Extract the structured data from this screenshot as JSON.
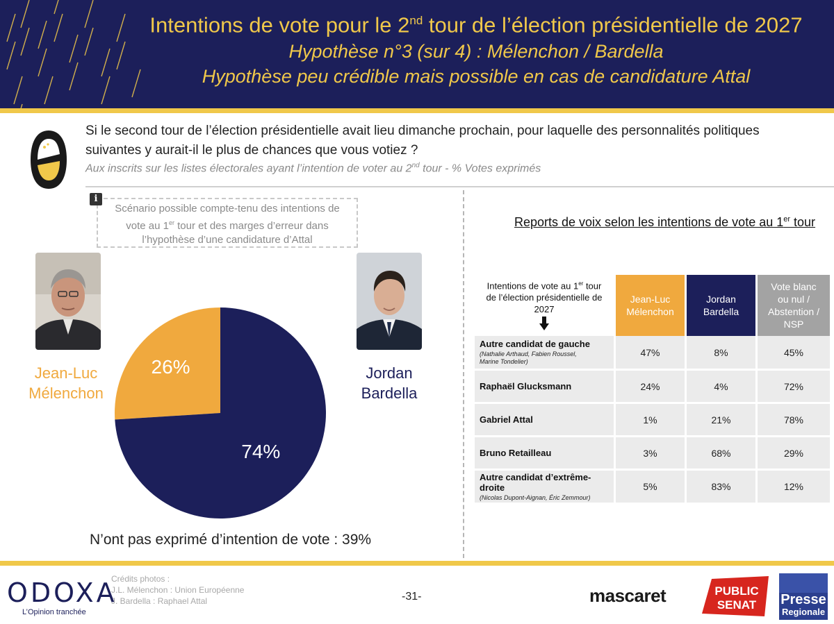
{
  "header": {
    "title_pre": "Intentions de vote pour le 2",
    "title_sup": "nd",
    "title_post": " tour de l’élection présidentielle de 2027",
    "subtitle1": "Hypothèse n°3 (sur 4) : Mélenchon / Bardella",
    "subtitle2": "Hypothèse peu crédible mais possible en cas de candidature Attal"
  },
  "question": {
    "text": "Si le second tour de l’élection présidentielle avait lieu dimanche prochain, pour laquelle des personnalités politiques suivantes y aurait-il le plus de chances que vous votiez ?",
    "note_pre": "Aux inscrits sur les listes électorales ayant l’intention de voter au 2",
    "note_sup": "nd",
    "note_post": " tour  - % Votes exprimés"
  },
  "info_box": {
    "line1": "Scénario possible compte-tenu des intentions de",
    "line2_pre": "vote au 1",
    "line2_sup": "er",
    "line2_post": " tour et des marges d’erreur dans",
    "line3": "l’hypothèse d’une candidature d’Attal"
  },
  "candidates": {
    "left": {
      "line1": "Jean-Luc",
      "line2": "Mélenchon"
    },
    "right": {
      "line1": "Jordan",
      "line2": "Bardella"
    }
  },
  "no_intent": "N’ont pas exprimé d’intention de vote : 39%",
  "colors": {
    "navy": "#1c1f5a",
    "orange": "#f0a93e",
    "gold": "#f0c84a",
    "grey": "#a3a3a3"
  },
  "chart_data": [
    {
      "type": "pie",
      "series": [
        {
          "name": "Jean-Luc Mélenchon",
          "value": 26,
          "label": "26%",
          "color": "#f0a93e"
        },
        {
          "name": "Jordan Bardella",
          "value": 74,
          "label": "74%",
          "color": "#1c1f5a"
        }
      ]
    },
    {
      "type": "table",
      "title_pre": "Reports de voix selon les intentions de vote au 1",
      "title_sup": "er",
      "title_post": " tour",
      "row_header": {
        "line1_pre": "Intentions de vote au 1",
        "line1_sup": "er",
        "line1_post": " tour",
        "line2": "de l’élection présidentielle de",
        "line3": "2027"
      },
      "columns": [
        {
          "line1": "Jean-Luc",
          "line2": "Mélenchon"
        },
        {
          "line1": "Jordan",
          "line2": "Bardella"
        },
        {
          "line1": "Vote blanc",
          "line2": "ou nul /",
          "line3": "Abstention /",
          "line4": "NSP"
        }
      ],
      "rows": [
        {
          "name": "Autre candidat de gauche",
          "detail1": "(Nathalie Arthaud, Fabien Roussel,",
          "detail2": "Marine Tondelier)",
          "values": [
            "47%",
            "8%",
            "45%"
          ]
        },
        {
          "name": "Raphaël Glucksmann",
          "detail1": "",
          "detail2": "",
          "values": [
            "24%",
            "4%",
            "72%"
          ]
        },
        {
          "name": "Gabriel Attal",
          "detail1": "",
          "detail2": "",
          "values": [
            "1%",
            "21%",
            "78%"
          ]
        },
        {
          "name": "Bruno Retailleau",
          "detail1": "",
          "detail2": "",
          "values": [
            "3%",
            "68%",
            "29%"
          ]
        },
        {
          "name": "Autre candidat d’extrême-droite",
          "detail1": "(Nicolas Dupont-Aignan, Éric Zemmour)",
          "detail2": "",
          "values": [
            "5%",
            "83%",
            "12%"
          ]
        }
      ]
    }
  ],
  "footer": {
    "logo": "ODOXA",
    "tagline": "L’Opinion tranchée",
    "credits1": "Crédits photos :",
    "credits2": "J.L. Mélenchon : Union Européenne",
    "credits3": "J. Bardella : Raphael Attal",
    "page": "-31-",
    "mascaret": "mascaret",
    "publicsenat1": "PUBLIC",
    "publicsenat2": "SENAT",
    "presse1": "Presse",
    "presse2": "Regionale"
  }
}
